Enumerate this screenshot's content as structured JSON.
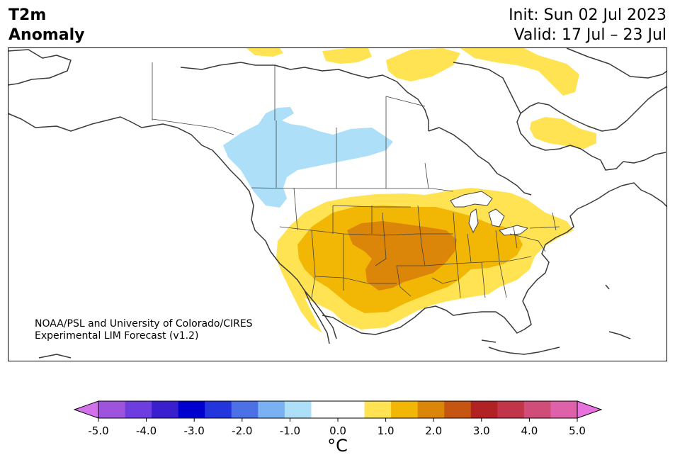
{
  "header": {
    "title_line1": "T2m",
    "title_line2": "Anomaly",
    "init_label": "Init: Sun 02 Jul 2023",
    "valid_label": "Valid: 17 Jul – 23 Jul"
  },
  "credit": {
    "line1": "NOAA/PSL and University of Colorado/CIRES",
    "line2": "Experimental LIM Forecast (v1.2)"
  },
  "colorbar": {
    "colors": [
      "#d371eb",
      "#9d53db",
      "#6d3ddf",
      "#3a1fcf",
      "#0000cf",
      "#2335dd",
      "#4c71e7",
      "#79b1f3",
      "#addff8",
      "#ffffff",
      "#ffffff",
      "#ffe352",
      "#f2b705",
      "#db8609",
      "#c55510",
      "#b22224",
      "#c13549",
      "#d04c79",
      "#dd62a9",
      "#e872dd"
    ],
    "ticks": [
      "-5.0",
      "-4.0",
      "-3.0",
      "-2.0",
      "-1.0",
      "0.0",
      "1.0",
      "2.0",
      "3.0",
      "4.0",
      "5.0"
    ],
    "unit_label": "°C",
    "min": -5.0,
    "max": 5.0
  },
  "anomaly_colors": {
    "cool_light": "#addff8",
    "warm_light": "#ffe352",
    "warm_mid": "#f2b705",
    "warm_strong": "#db8609"
  }
}
